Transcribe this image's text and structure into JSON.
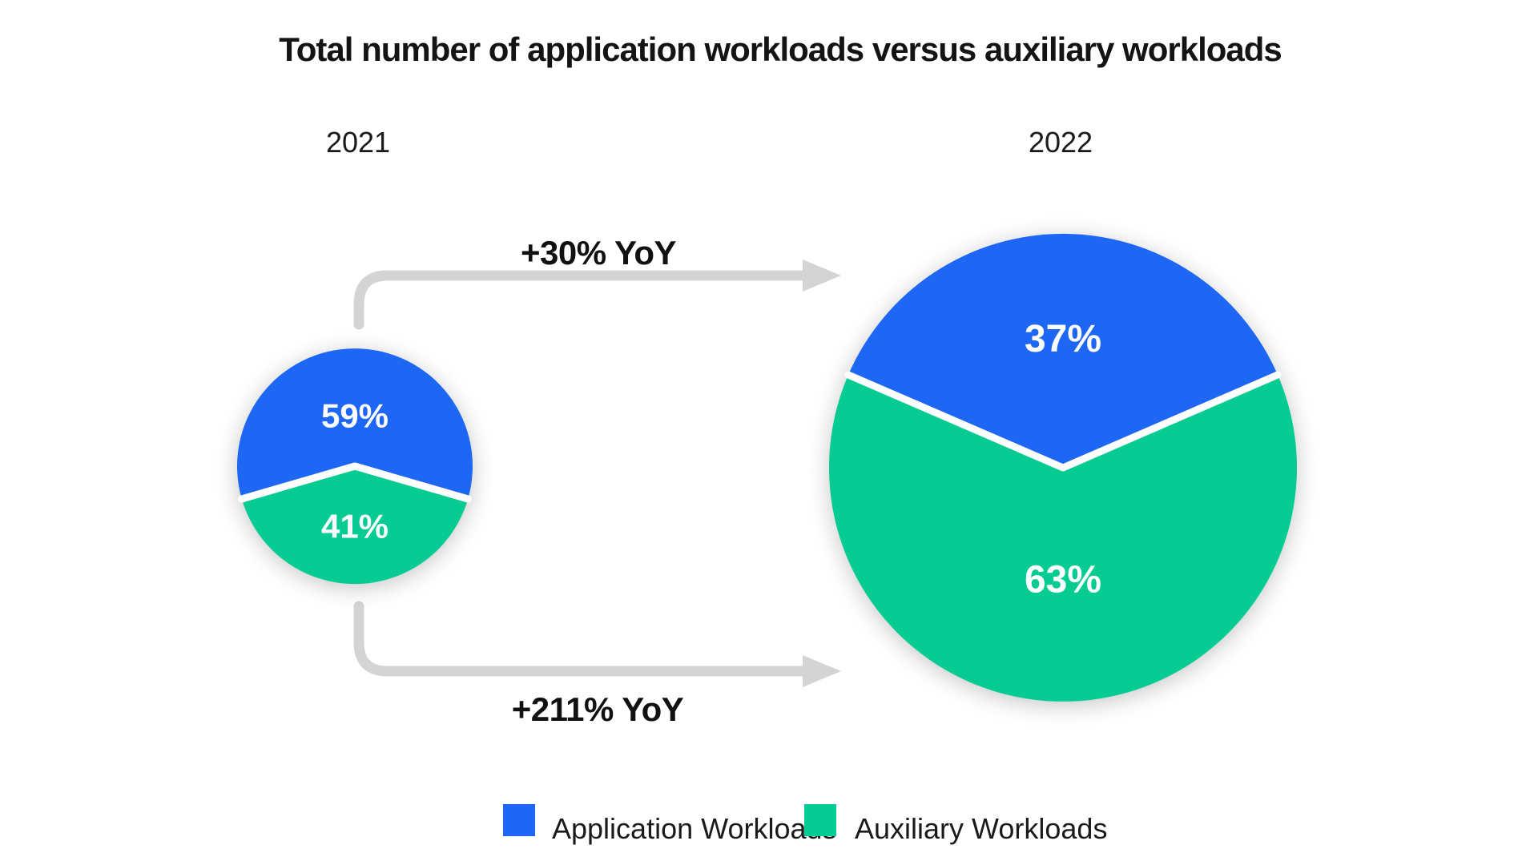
{
  "title": {
    "text": "Total number of application workloads versus auxiliary workloads"
  },
  "chart_data": {
    "type": "pie",
    "title": "Total number of application workloads versus auxiliary workloads",
    "unit": "percent",
    "legend_position": "bottom",
    "pies": [
      {
        "year": "2021",
        "slices": [
          {
            "label": "Application Workloads",
            "value": 59,
            "display": "59%",
            "color": "#1e67f5",
            "position": "top"
          },
          {
            "label": "Auxiliary Workloads",
            "value": 41,
            "display": "41%",
            "color": "#06cc93",
            "position": "bottom"
          }
        ]
      },
      {
        "year": "2022",
        "slices": [
          {
            "label": "Application Workloads",
            "value": 37,
            "display": "37%",
            "color": "#1e67f5",
            "position": "top"
          },
          {
            "label": "Auxiliary Workloads",
            "value": 63,
            "display": "63%",
            "color": "#06cc93",
            "position": "bottom"
          }
        ]
      }
    ],
    "annotations": [
      {
        "text": "+30% YoY",
        "applies_to": "Application Workloads",
        "from_year": "2021",
        "to_year": "2022"
      },
      {
        "text": "+211% YoY",
        "applies_to": "Auxiliary Workloads",
        "from_year": "2021",
        "to_year": "2022"
      }
    ],
    "layout_hints": {
      "pie_2022_radius_vs_2021": "about 2x",
      "slice_dividers": "white",
      "arrows": "gray elbow arrows from 2021 pie to 2022 pie"
    }
  },
  "legend": {
    "items": [
      {
        "label": "Application Workloads",
        "color": "#1e67f5"
      },
      {
        "label": "Auxiliary Workloads",
        "color": "#06cc93"
      }
    ]
  },
  "colors": {
    "application_blue": "#1e67f5",
    "auxiliary_green": "#06cc93",
    "arrow_gray": "#d4d4d4",
    "text_dark": "#141414",
    "slice_label_white": "#ffffff",
    "divider_white": "#ffffff",
    "background": "#ffffff"
  }
}
